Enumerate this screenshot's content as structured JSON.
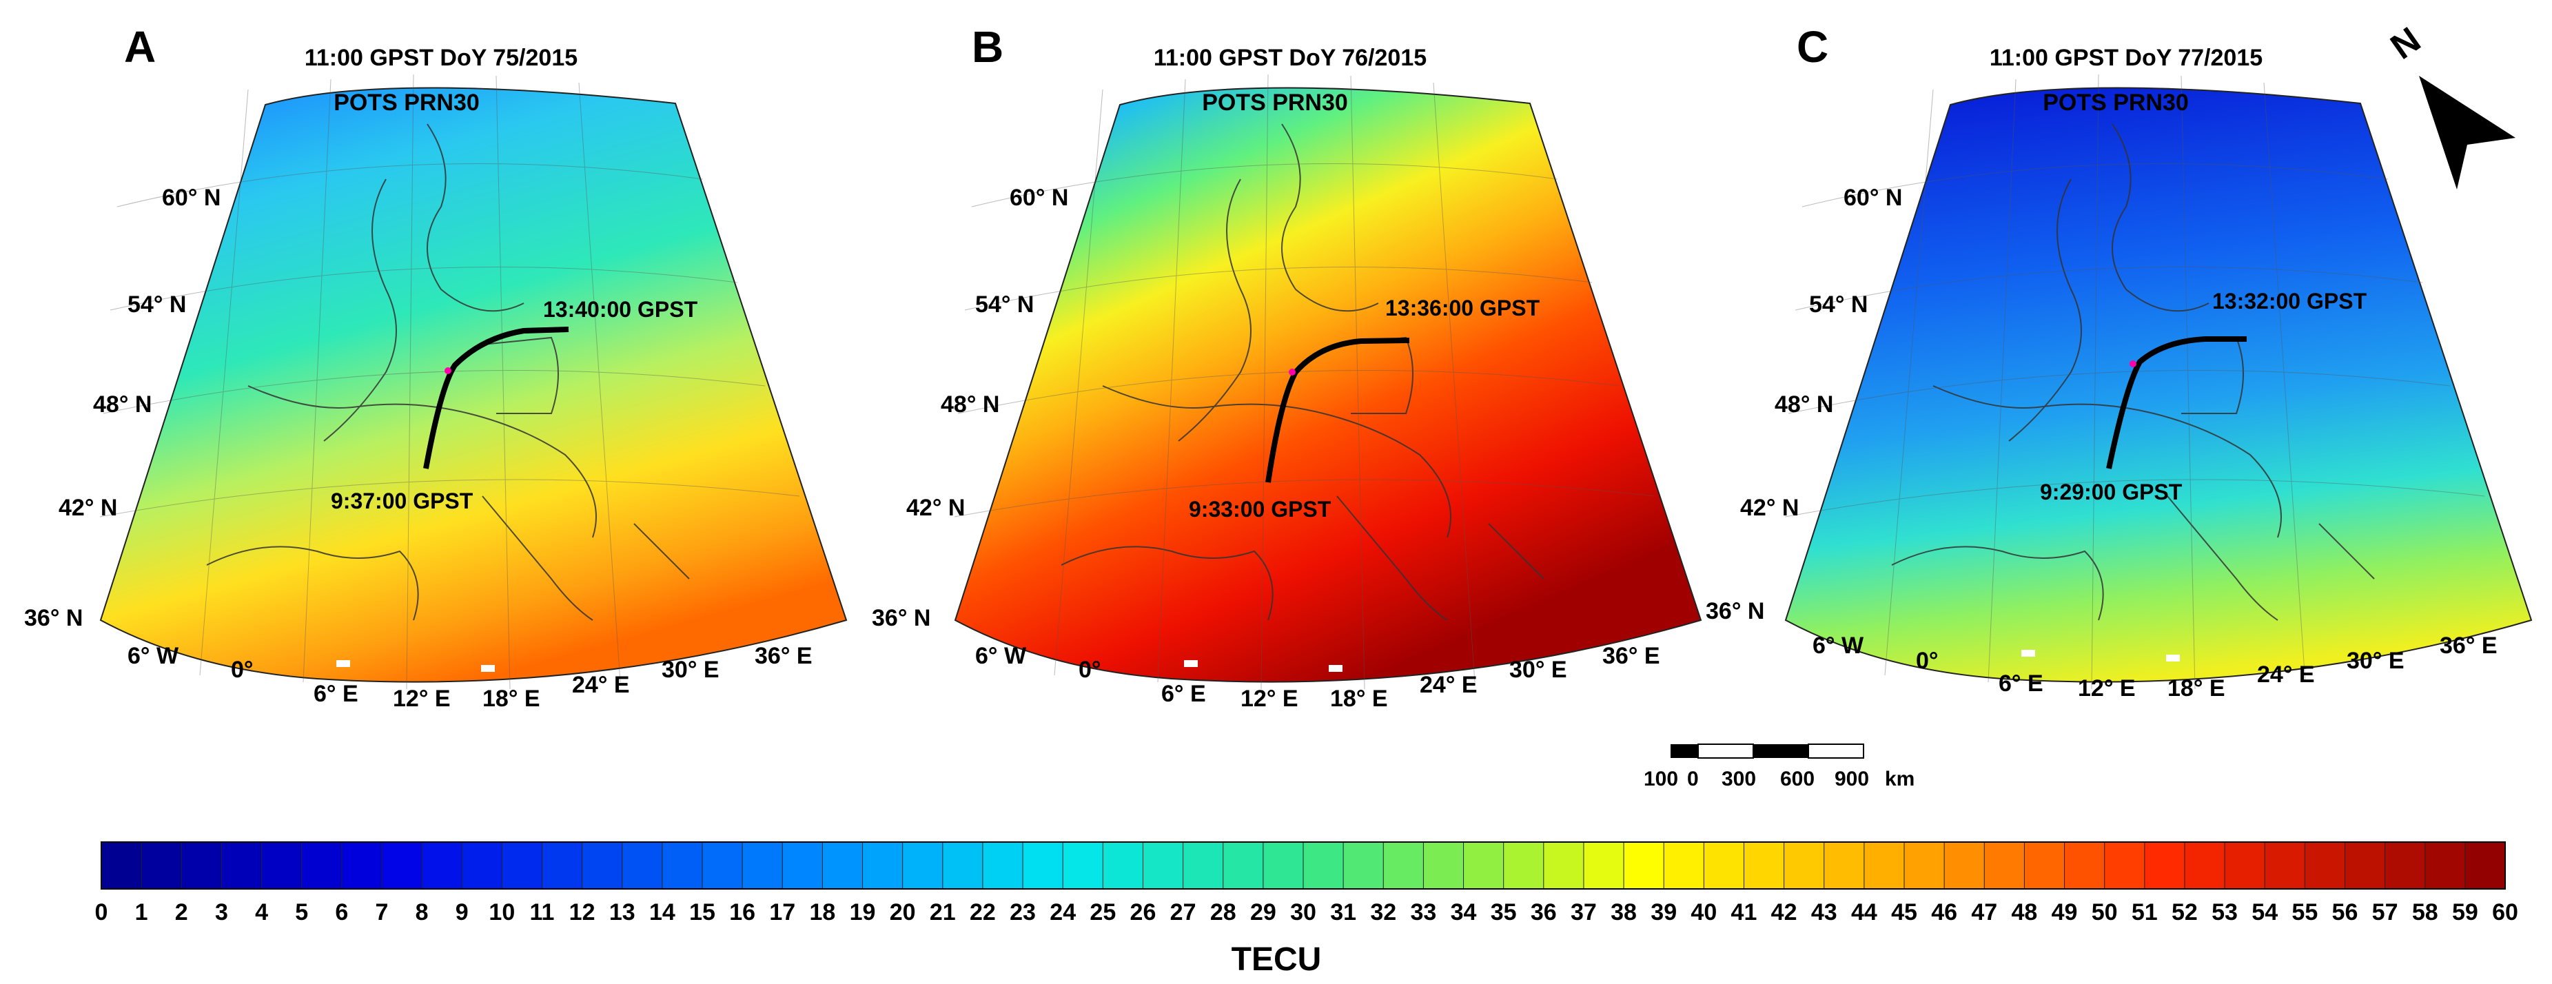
{
  "panels": [
    {
      "letter": "A",
      "header_time": "11:00 GPST  DoY 75/2015",
      "header_station": "POTS PRN30",
      "start_label": "9:37:00 GPST",
      "end_label": "13:40:00 GPST",
      "map_style": "moderate"
    },
    {
      "letter": "B",
      "header_time": "11:00 GPST  DoY 76/2015",
      "header_station": "POTS PRN30",
      "start_label": "9:33:00 GPST",
      "end_label": "13:36:00 GPST",
      "map_style": "high"
    },
    {
      "letter": "C",
      "header_time": "11:00 GPST  DoY 77/2015",
      "header_station": "POTS PRN30",
      "start_label": "9:29:00 GPST",
      "end_label": "13:32:00 GPST",
      "map_style": "low"
    }
  ],
  "lat_labels": [
    "60° N",
    "54° N",
    "48° N",
    "42° N",
    "36° N"
  ],
  "lon_labels": [
    "6° W",
    "0°",
    "6° E",
    "12° E",
    "18° E",
    "24° E",
    "30° E",
    "36° E"
  ],
  "north_arrow": {
    "label": "N"
  },
  "scale_bar": {
    "ticks": [
      "100",
      "0",
      "300",
      "600",
      "900"
    ],
    "unit": "km"
  },
  "colorbar": {
    "title": "TECU",
    "min": 0,
    "max": 60,
    "ticks": [
      "0",
      "1",
      "2",
      "3",
      "4",
      "5",
      "6",
      "7",
      "8",
      "9",
      "10",
      "11",
      "12",
      "13",
      "14",
      "15",
      "16",
      "17",
      "18",
      "19",
      "20",
      "21",
      "22",
      "23",
      "24",
      "25",
      "26",
      "27",
      "28",
      "29",
      "30",
      "31",
      "32",
      "33",
      "34",
      "35",
      "36",
      "37",
      "38",
      "39",
      "40",
      "41",
      "42",
      "43",
      "44",
      "45",
      "46",
      "47",
      "48",
      "49",
      "50",
      "51",
      "52",
      "53",
      "54",
      "55",
      "56",
      "57",
      "58",
      "59",
      "60"
    ]
  },
  "colors": {
    "low": "#00008b",
    "mid": "#3cf0a0",
    "high": "#8b0000"
  }
}
